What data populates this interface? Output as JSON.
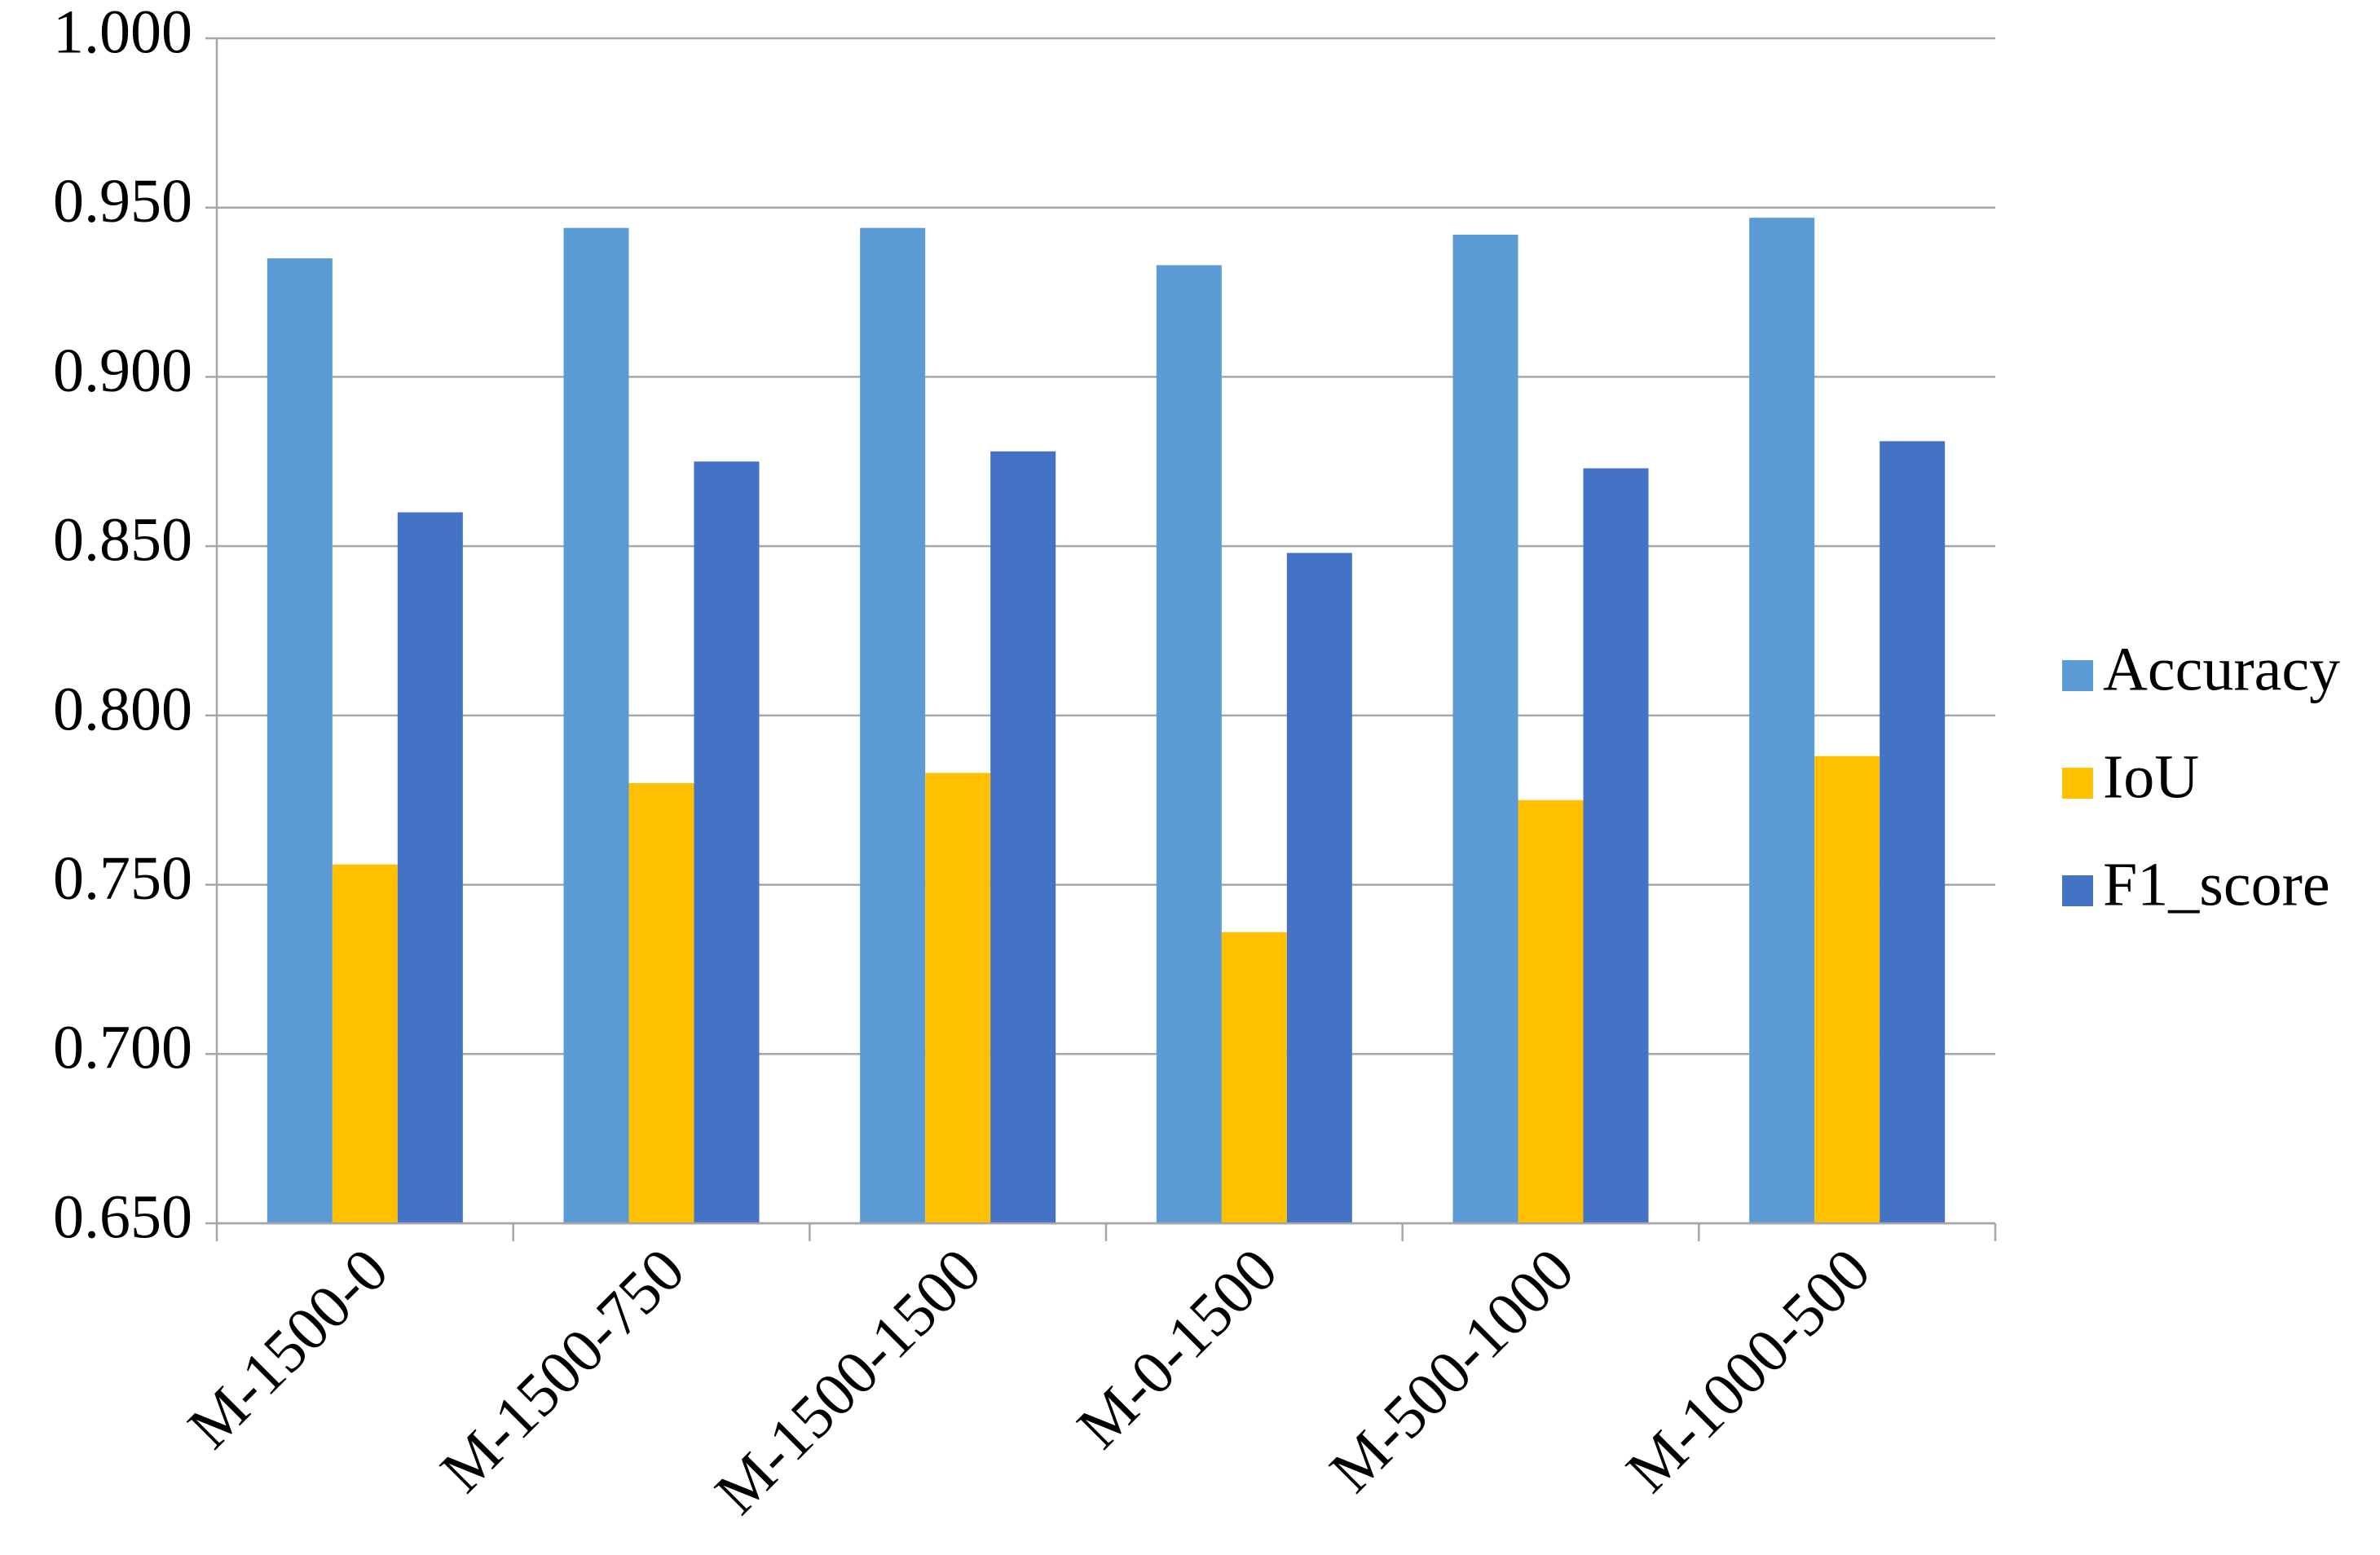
{
  "chart_data": {
    "type": "bar",
    "categories": [
      "M-1500-0",
      "M-1500-750",
      "M-1500-1500",
      "M-0-1500",
      "M-500-1000",
      "M-1000-500"
    ],
    "series": [
      {
        "name": "Accuracy",
        "color": "#5b9bd5",
        "values": [
          0.935,
          0.944,
          0.944,
          0.933,
          0.942,
          0.947
        ]
      },
      {
        "name": "IoU",
        "color": "#ffc000",
        "values": [
          0.756,
          0.78,
          0.783,
          0.736,
          0.775,
          0.788
        ]
      },
      {
        "name": "F1_score",
        "color": "#4472c4",
        "values": [
          0.86,
          0.875,
          0.878,
          0.848,
          0.873,
          0.881
        ]
      }
    ],
    "ylim": [
      0.65,
      1.0
    ],
    "yticks": [
      {
        "value": 0.65,
        "label": "0.650"
      },
      {
        "value": 0.7,
        "label": "0.700"
      },
      {
        "value": 0.75,
        "label": "0.750"
      },
      {
        "value": 0.8,
        "label": "0.800"
      },
      {
        "value": 0.85,
        "label": "0.850"
      },
      {
        "value": 0.9,
        "label": "0.900"
      },
      {
        "value": 0.95,
        "label": "0.950"
      },
      {
        "value": 1.0,
        "label": "1.000"
      }
    ],
    "grid": true,
    "legend": "right"
  }
}
